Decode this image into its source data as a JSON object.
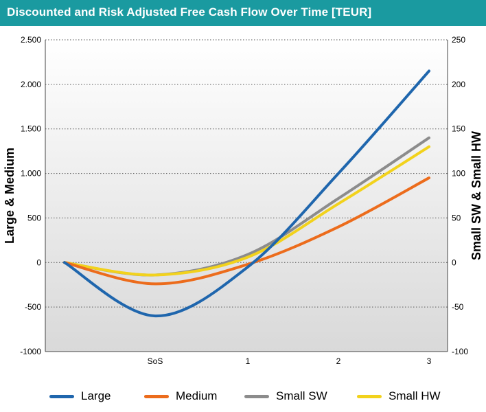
{
  "title": "Discounted and Risk Adjusted Free Cash Flow Over Time [TEUR]",
  "colors": {
    "header": "#1a9aa0",
    "plot_bg_top": "#ffffff",
    "plot_bg_bottom": "#d9d9d9"
  },
  "chart_data": {
    "type": "line",
    "title": "Discounted and Risk Adjusted Free Cash Flow Over Time [TEUR]",
    "categories": [
      "",
      "SoS",
      "1",
      "2",
      "3"
    ],
    "ylabel": "Large & Medium",
    "y2label": "Small SW & Small HW",
    "ylim": [
      -1000,
      2500
    ],
    "y2lim": [
      -100,
      250
    ],
    "y_ticks": [
      -1000,
      -500,
      0,
      500,
      1000,
      1500,
      2000,
      2500
    ],
    "y_tick_labels": [
      "-1000",
      "-500",
      "0",
      "500",
      "1.000",
      "1.500",
      "2.000",
      "2.500"
    ],
    "y2_ticks": [
      -100,
      -50,
      0,
      50,
      100,
      150,
      200,
      250
    ],
    "y2_tick_labels": [
      "-100",
      "-50",
      "0",
      "50",
      "100",
      "150",
      "200",
      "250"
    ],
    "grid": "horizontal-dotted",
    "legend": "bottom",
    "series": [
      {
        "name": "Large",
        "axis": "left",
        "color": "#1f66ad",
        "values": [
          0,
          -600,
          -50,
          1000,
          2150
        ]
      },
      {
        "name": "Medium",
        "axis": "left",
        "color": "#ec6c1c",
        "values": [
          0,
          -240,
          -20,
          400,
          950
        ]
      },
      {
        "name": "Small SW",
        "axis": "right",
        "color": "#8c8c8c",
        "values": [
          0,
          -14,
          9,
          72,
          140
        ]
      },
      {
        "name": "Small HW",
        "axis": "right",
        "color": "#f2d21c",
        "values": [
          0,
          -14,
          6,
          66,
          130
        ]
      }
    ]
  }
}
